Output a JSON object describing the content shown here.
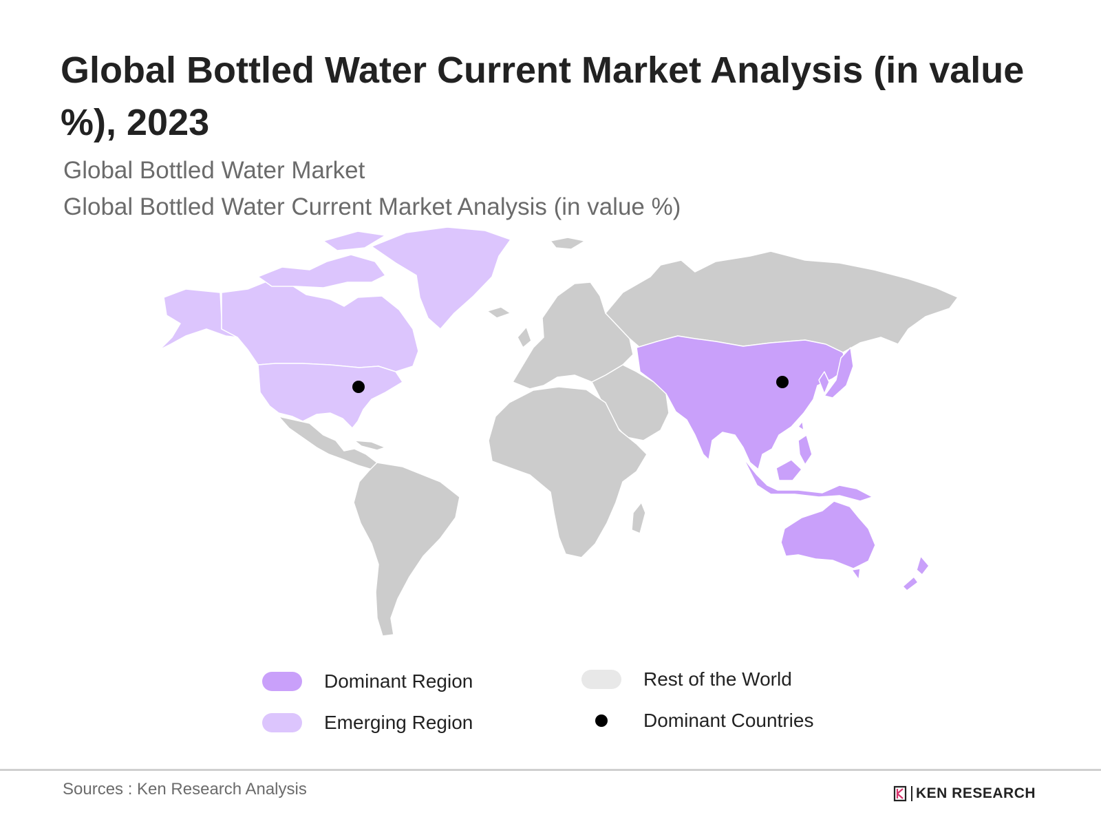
{
  "title": "Global Bottled Water Current Market Analysis (in value %), 2023",
  "subtitle_1": "Global Bottled Water Market",
  "subtitle_2": "Global Bottled Water Current Market Analysis (in value %)",
  "colors": {
    "dominant_region": "#c9a0fa",
    "emerging_region": "#dcc5fd",
    "rest_of_world": "#cccccc",
    "rest_of_world_legend": "#e8e8e8",
    "dominant_country_dot": "#000000"
  },
  "legend": [
    {
      "key": "dominant",
      "label": "Dominant Region"
    },
    {
      "key": "emerging",
      "label": "Emerging Region"
    },
    {
      "key": "rest",
      "label": "Rest of the World"
    },
    {
      "key": "dominant_countries",
      "label": "Dominant Countries"
    }
  ],
  "regions": {
    "dominant": [
      "Asia-Pacific"
    ],
    "emerging": [
      "North America"
    ],
    "rest": [
      "Europe",
      "Russia",
      "Middle East",
      "Africa",
      "Latin America"
    ]
  },
  "dominant_countries": [
    "United States",
    "China"
  ],
  "source": "Sources : Ken Research Analysis",
  "logo_text": "KEN RESEARCH"
}
